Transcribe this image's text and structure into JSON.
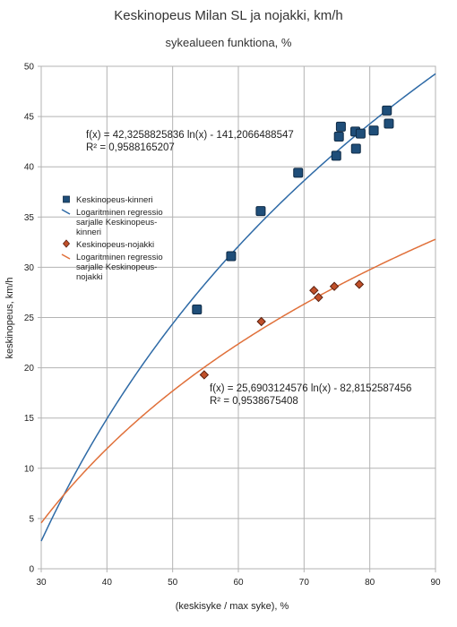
{
  "chart_data": {
    "type": "scatter",
    "title": "Keskinopeus Milan SL ja nojakki, km/h",
    "subtitle": "sykealueen funktiona, %",
    "xlabel": "(keskisyke / max syke), %",
    "ylabel": "keskinopeus, km/h",
    "xlim": [
      30,
      90
    ],
    "ylim": [
      0,
      50
    ],
    "x_ticks": [
      "30",
      "40",
      "50",
      "60",
      "70",
      "80",
      "90"
    ],
    "y_ticks": [
      "0",
      "5",
      "10",
      "15",
      "20",
      "25",
      "30",
      "35",
      "40",
      "45",
      "50"
    ],
    "grid": true,
    "legend_position": "left-middle",
    "series": [
      {
        "name": "Keskinopeus-kinneri",
        "marker": "square",
        "color": "#1f4e79",
        "points": [
          [
            53.7,
            25.8
          ],
          [
            58.9,
            31.1
          ],
          [
            63.4,
            35.6
          ],
          [
            69.1,
            39.4
          ],
          [
            74.9,
            41.1
          ],
          [
            75.3,
            43.0
          ],
          [
            75.6,
            44.0
          ],
          [
            77.8,
            43.5
          ],
          [
            77.9,
            41.8
          ],
          [
            78.6,
            43.3
          ],
          [
            80.6,
            43.6
          ],
          [
            82.6,
            45.6
          ],
          [
            82.9,
            44.3
          ]
        ]
      },
      {
        "name": "Keskinopeus-nojakki",
        "marker": "diamond",
        "color": "#c0502a",
        "points": [
          [
            54.8,
            19.3
          ],
          [
            63.5,
            24.6
          ],
          [
            71.5,
            27.7
          ],
          [
            72.2,
            27.0
          ],
          [
            74.6,
            28.1
          ],
          [
            78.4,
            28.3
          ]
        ]
      }
    ],
    "trendlines": [
      {
        "name": "Logaritminen regressio sarjalle Keskinopeus-kinneri",
        "type": "log",
        "a": 42.3258825836,
        "b": -141.2066488547,
        "color": "#2e6aa6",
        "equation": "f(x) = 42,3258825836 ln(x) - 141,2066488547",
        "r2": "R² = 0,9588165207"
      },
      {
        "name": "Logaritminen regressio sarjalle Keskinopeus-nojakki",
        "type": "log",
        "a": 25.6903124576,
        "b": -82.8152587456,
        "color": "#e0703a",
        "equation": "f(x) = 25,6903124576 ln(x) - 82,8152587456",
        "r2": "R² = 0,9538675408"
      }
    ],
    "legend": [
      {
        "kind": "square",
        "color": "#1f4e79",
        "lines": [
          "Keskinopeus-kinneri"
        ]
      },
      {
        "kind": "line",
        "color": "#2e6aa6",
        "lines": [
          "Logaritminen regressio",
          "sarjalle Keskinopeus-",
          "kinneri"
        ]
      },
      {
        "kind": "diamond",
        "color": "#c0502a",
        "lines": [
          "Keskinopeus-nojakki"
        ]
      },
      {
        "kind": "line",
        "color": "#e0703a",
        "lines": [
          "Logaritminen regressio",
          "sarjalle Keskinopeus-",
          "nojakki"
        ]
      }
    ]
  }
}
